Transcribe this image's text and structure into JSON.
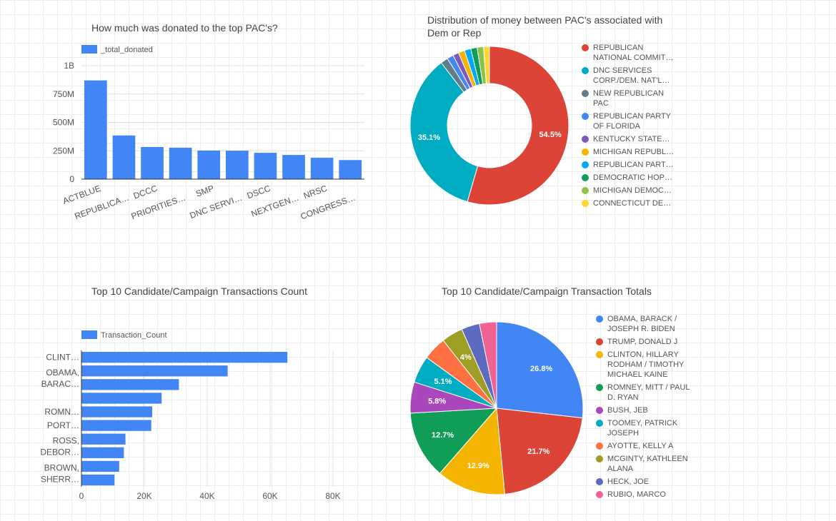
{
  "chart_data": [
    {
      "type": "bar",
      "title": "How much was donated to the top PAC's?",
      "legend": "_total_donated",
      "color": "#4285f4",
      "categories": [
        "ACTBLUE",
        "REPUBLICA…",
        "DCCC",
        "PRIORITIES…",
        "SMP",
        "DNC SERVI…",
        "DSCC",
        "NEXTGEN…",
        "NRSC",
        "CONGRESS…"
      ],
      "values": [
        870000000,
        385000000,
        283000000,
        277000000,
        252000000,
        251000000,
        232000000,
        213000000,
        188000000,
        168000000
      ],
      "yticks": [
        "0",
        "250M",
        "500M",
        "750M",
        "1B"
      ],
      "ylim": [
        0,
        1000000000
      ]
    },
    {
      "type": "pie",
      "variant": "donut",
      "title": "Distribution of money between PAC's associated with Dem or Rep",
      "slices": [
        {
          "label": "REPUBLICAN\nNATIONAL COMMIT…",
          "value": 54.5,
          "color": "#db4437",
          "text": "54.5%"
        },
        {
          "label": "DNC SERVICES\nCORP./DEM. NAT'L…",
          "value": 35.1,
          "color": "#00acc1",
          "text": "35.1%"
        },
        {
          "label": "NEW REPUBLICAN\nPAC",
          "value": 1.5,
          "color": "#607d8b",
          "text": ""
        },
        {
          "label": "REPUBLICAN PARTY\nOF FLORIDA",
          "value": 1.3,
          "color": "#4285f4",
          "text": ""
        },
        {
          "label": "KENTUCKY STATE…",
          "value": 1.2,
          "color": "#7e57c2",
          "text": ""
        },
        {
          "label": "MICHIGAN REPUBL…",
          "value": 1.3,
          "color": "#f4b400",
          "text": ""
        },
        {
          "label": "REPUBLICAN PART…",
          "value": 1.3,
          "color": "#03a9f4",
          "text": ""
        },
        {
          "label": "DEMOCRATIC HOP…",
          "value": 1.3,
          "color": "#0f9d58",
          "text": ""
        },
        {
          "label": "MICHIGAN DEMOC…",
          "value": 1.3,
          "color": "#8bc34a",
          "text": ""
        },
        {
          "label": "CONNECTICUT DE…",
          "value": 1.2,
          "color": "#fdd835",
          "text": ""
        }
      ]
    },
    {
      "type": "bar",
      "orientation": "horizontal",
      "title": "Top 10 Candidate/Campaign Transactions Count",
      "legend": "Transaction_Count",
      "color": "#4285f4",
      "categories": [
        "CLINT…",
        "",
        "OBAMA,\nBARAC…",
        "",
        "ROMN…",
        "PORT…",
        "",
        "ROSS,\nDEBOR…",
        "",
        "BROWN,\nSHERR…"
      ],
      "values": [
        65500,
        46500,
        31000,
        25500,
        22500,
        22200,
        14000,
        13500,
        12000,
        10500
      ],
      "xticks": [
        "0",
        "20K",
        "40K",
        "60K",
        "80K"
      ],
      "xlim": [
        0,
        80000
      ]
    },
    {
      "type": "pie",
      "title": "Top 10 Candidate/Campaign Transaction Totals",
      "slices": [
        {
          "label": "OBAMA, BARACK /\nJOSEPH R. BIDEN",
          "value": 26.8,
          "color": "#4285f4",
          "text": "26.8%"
        },
        {
          "label": "TRUMP, DONALD J",
          "value": 21.7,
          "color": "#db4437",
          "text": "21.7%"
        },
        {
          "label": "CLINTON, HILLARY\nRODHAM / TIMOTHY\nMICHAEL KAINE",
          "value": 12.9,
          "color": "#f4b400",
          "text": "12.9%"
        },
        {
          "label": "ROMNEY, MITT / PAUL\nD. RYAN",
          "value": 12.7,
          "color": "#0f9d58",
          "text": "12.7%"
        },
        {
          "label": "BUSH, JEB",
          "value": 5.8,
          "color": "#ab47bc",
          "text": "5.8%"
        },
        {
          "label": "TOOMEY, PATRICK\nJOSEPH",
          "value": 5.1,
          "color": "#00acc1",
          "text": "5.1%"
        },
        {
          "label": "AYOTTE, KELLY A",
          "value": 4.4,
          "color": "#ff7043",
          "text": ""
        },
        {
          "label": "MCGINTY, KATHLEEN\nALANA",
          "value": 4.0,
          "color": "#9e9d24",
          "text": "4%"
        },
        {
          "label": "HECK, JOE",
          "value": 3.4,
          "color": "#5c6bc0",
          "text": ""
        },
        {
          "label": "RUBIO, MARCO",
          "value": 3.2,
          "color": "#f06292",
          "text": ""
        }
      ]
    }
  ]
}
